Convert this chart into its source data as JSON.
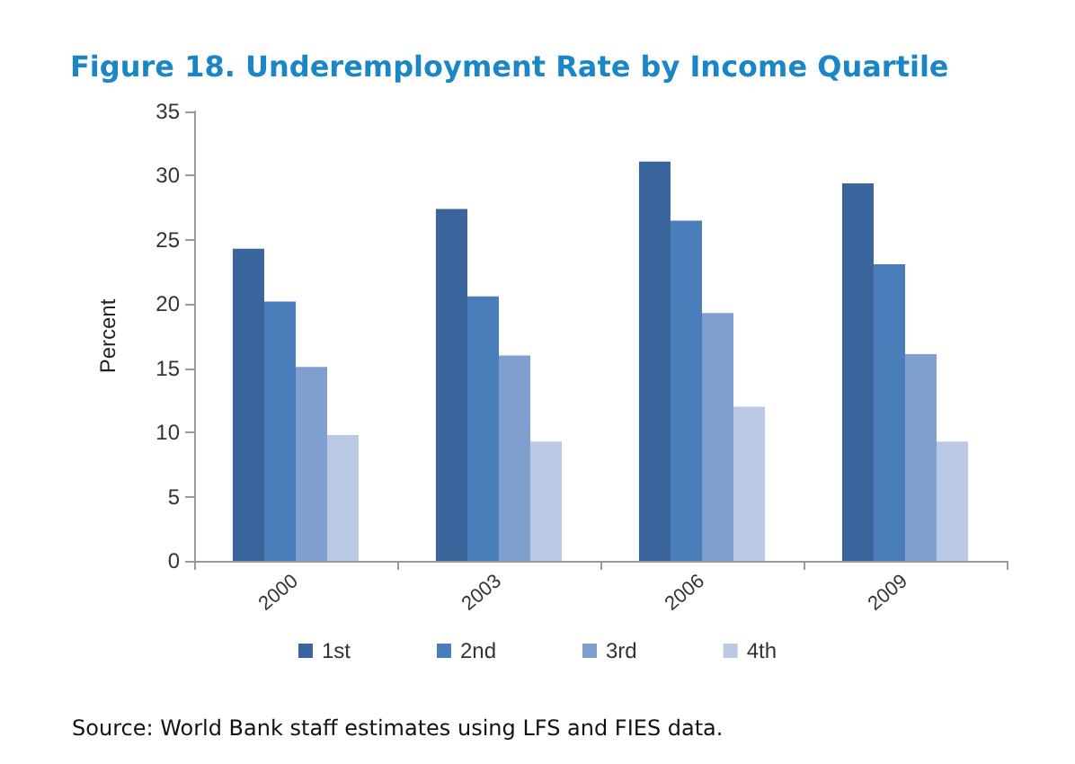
{
  "chart_data": {
    "type": "bar",
    "title": "Figure 18. Underemployment Rate by Income Quartile",
    "ylabel": "Percent",
    "categories": [
      "2000",
      "2003",
      "2006",
      "2009"
    ],
    "series": [
      {
        "name": "1st",
        "color": "#3a659c",
        "values": [
          24.3,
          27.4,
          31.1,
          29.4
        ]
      },
      {
        "name": "2nd",
        "color": "#4a7ebb",
        "values": [
          20.2,
          20.6,
          26.5,
          23.1
        ]
      },
      {
        "name": "3rd",
        "color": "#7f9fcf",
        "values": [
          15.1,
          16.0,
          19.3,
          16.1
        ]
      },
      {
        "name": "4th",
        "color": "#b9c9e3",
        "values": [
          9.8,
          9.3,
          12.0,
          9.3
        ]
      }
    ],
    "ylim": [
      0,
      35
    ],
    "yticks": [
      0,
      5,
      10,
      15,
      20,
      25,
      30,
      35
    ],
    "grid": false,
    "legend": "bottom",
    "annotations": [
      "Source: World Bank staff estimates using LFS and FIES data."
    ]
  }
}
